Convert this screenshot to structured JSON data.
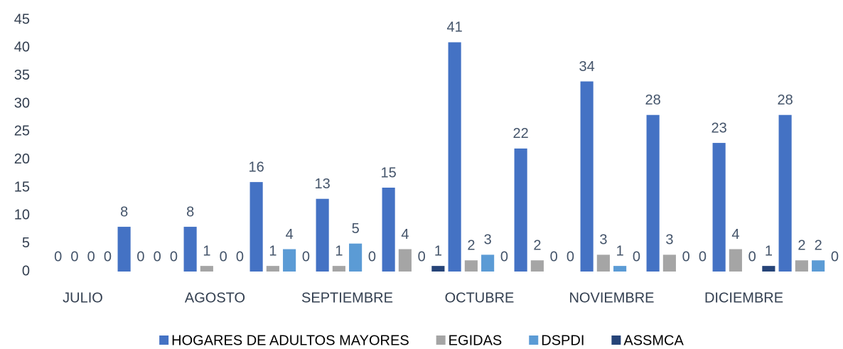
{
  "chart_data": {
    "type": "bar",
    "categories": [
      "JULIO",
      null,
      "AGOSTO",
      null,
      "SEPTIEMBRE",
      null,
      "OCTUBRE",
      null,
      "NOVIEMBRE",
      null,
      "DICIEMBRE",
      null
    ],
    "series": [
      {
        "name": "HOGARES DE ADULTOS MAYORES",
        "color": "#4472c4",
        "values": [
          0,
          8,
          8,
          16,
          13,
          15,
          41,
          22,
          34,
          28,
          23,
          28
        ]
      },
      {
        "name": "EGIDAS",
        "color": "#a5a5a5",
        "values": [
          0,
          0,
          1,
          1,
          1,
          4,
          2,
          2,
          3,
          3,
          4,
          2
        ]
      },
      {
        "name": "DSPDI",
        "color": "#5b9bd5",
        "values": [
          0,
          0,
          0,
          4,
          5,
          0,
          3,
          0,
          1,
          0,
          0,
          2
        ]
      },
      {
        "name": "ASSMCA",
        "color": "#264478",
        "values": [
          0,
          0,
          0,
          0,
          0,
          1,
          0,
          0,
          0,
          0,
          1,
          0
        ]
      }
    ],
    "ylim": [
      0,
      45
    ],
    "yticks": [
      0,
      5,
      10,
      15,
      20,
      25,
      30,
      35,
      40,
      45
    ],
    "grid": false,
    "legend": "bottom",
    "data_labels": true
  }
}
